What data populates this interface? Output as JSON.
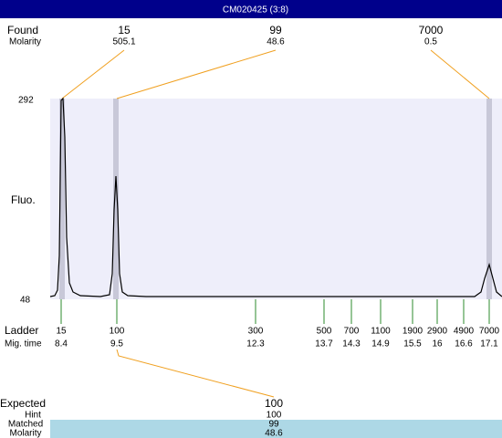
{
  "title": "CM020425 (3:8)",
  "found": {
    "label": "Found",
    "molarity_label": "Molarity",
    "peaks": [
      {
        "size": 15,
        "molarity": 505.1
      },
      {
        "size": 99,
        "molarity": 48.6
      },
      {
        "size": 7000,
        "molarity": 0.5
      }
    ]
  },
  "plot": {
    "y_label": "Fluo.",
    "y_max": 292,
    "y_min": 48
  },
  "ladder": {
    "label": "Ladder",
    "time_label": "Mig. time",
    "sizes": [
      15,
      100,
      300,
      500,
      700,
      1100,
      1900,
      2900,
      4900,
      7000
    ],
    "times": [
      8.4,
      9.5,
      12.3,
      13.7,
      14.3,
      14.9,
      15.5,
      16,
      16.6,
      17.1
    ]
  },
  "expected": {
    "label": "Expected",
    "value": 100,
    "hint_label": "Hint",
    "hint": 100,
    "matched_label": "Matched",
    "matched": 99,
    "molarity_label": "Molarity",
    "molarity": 48.6
  }
}
